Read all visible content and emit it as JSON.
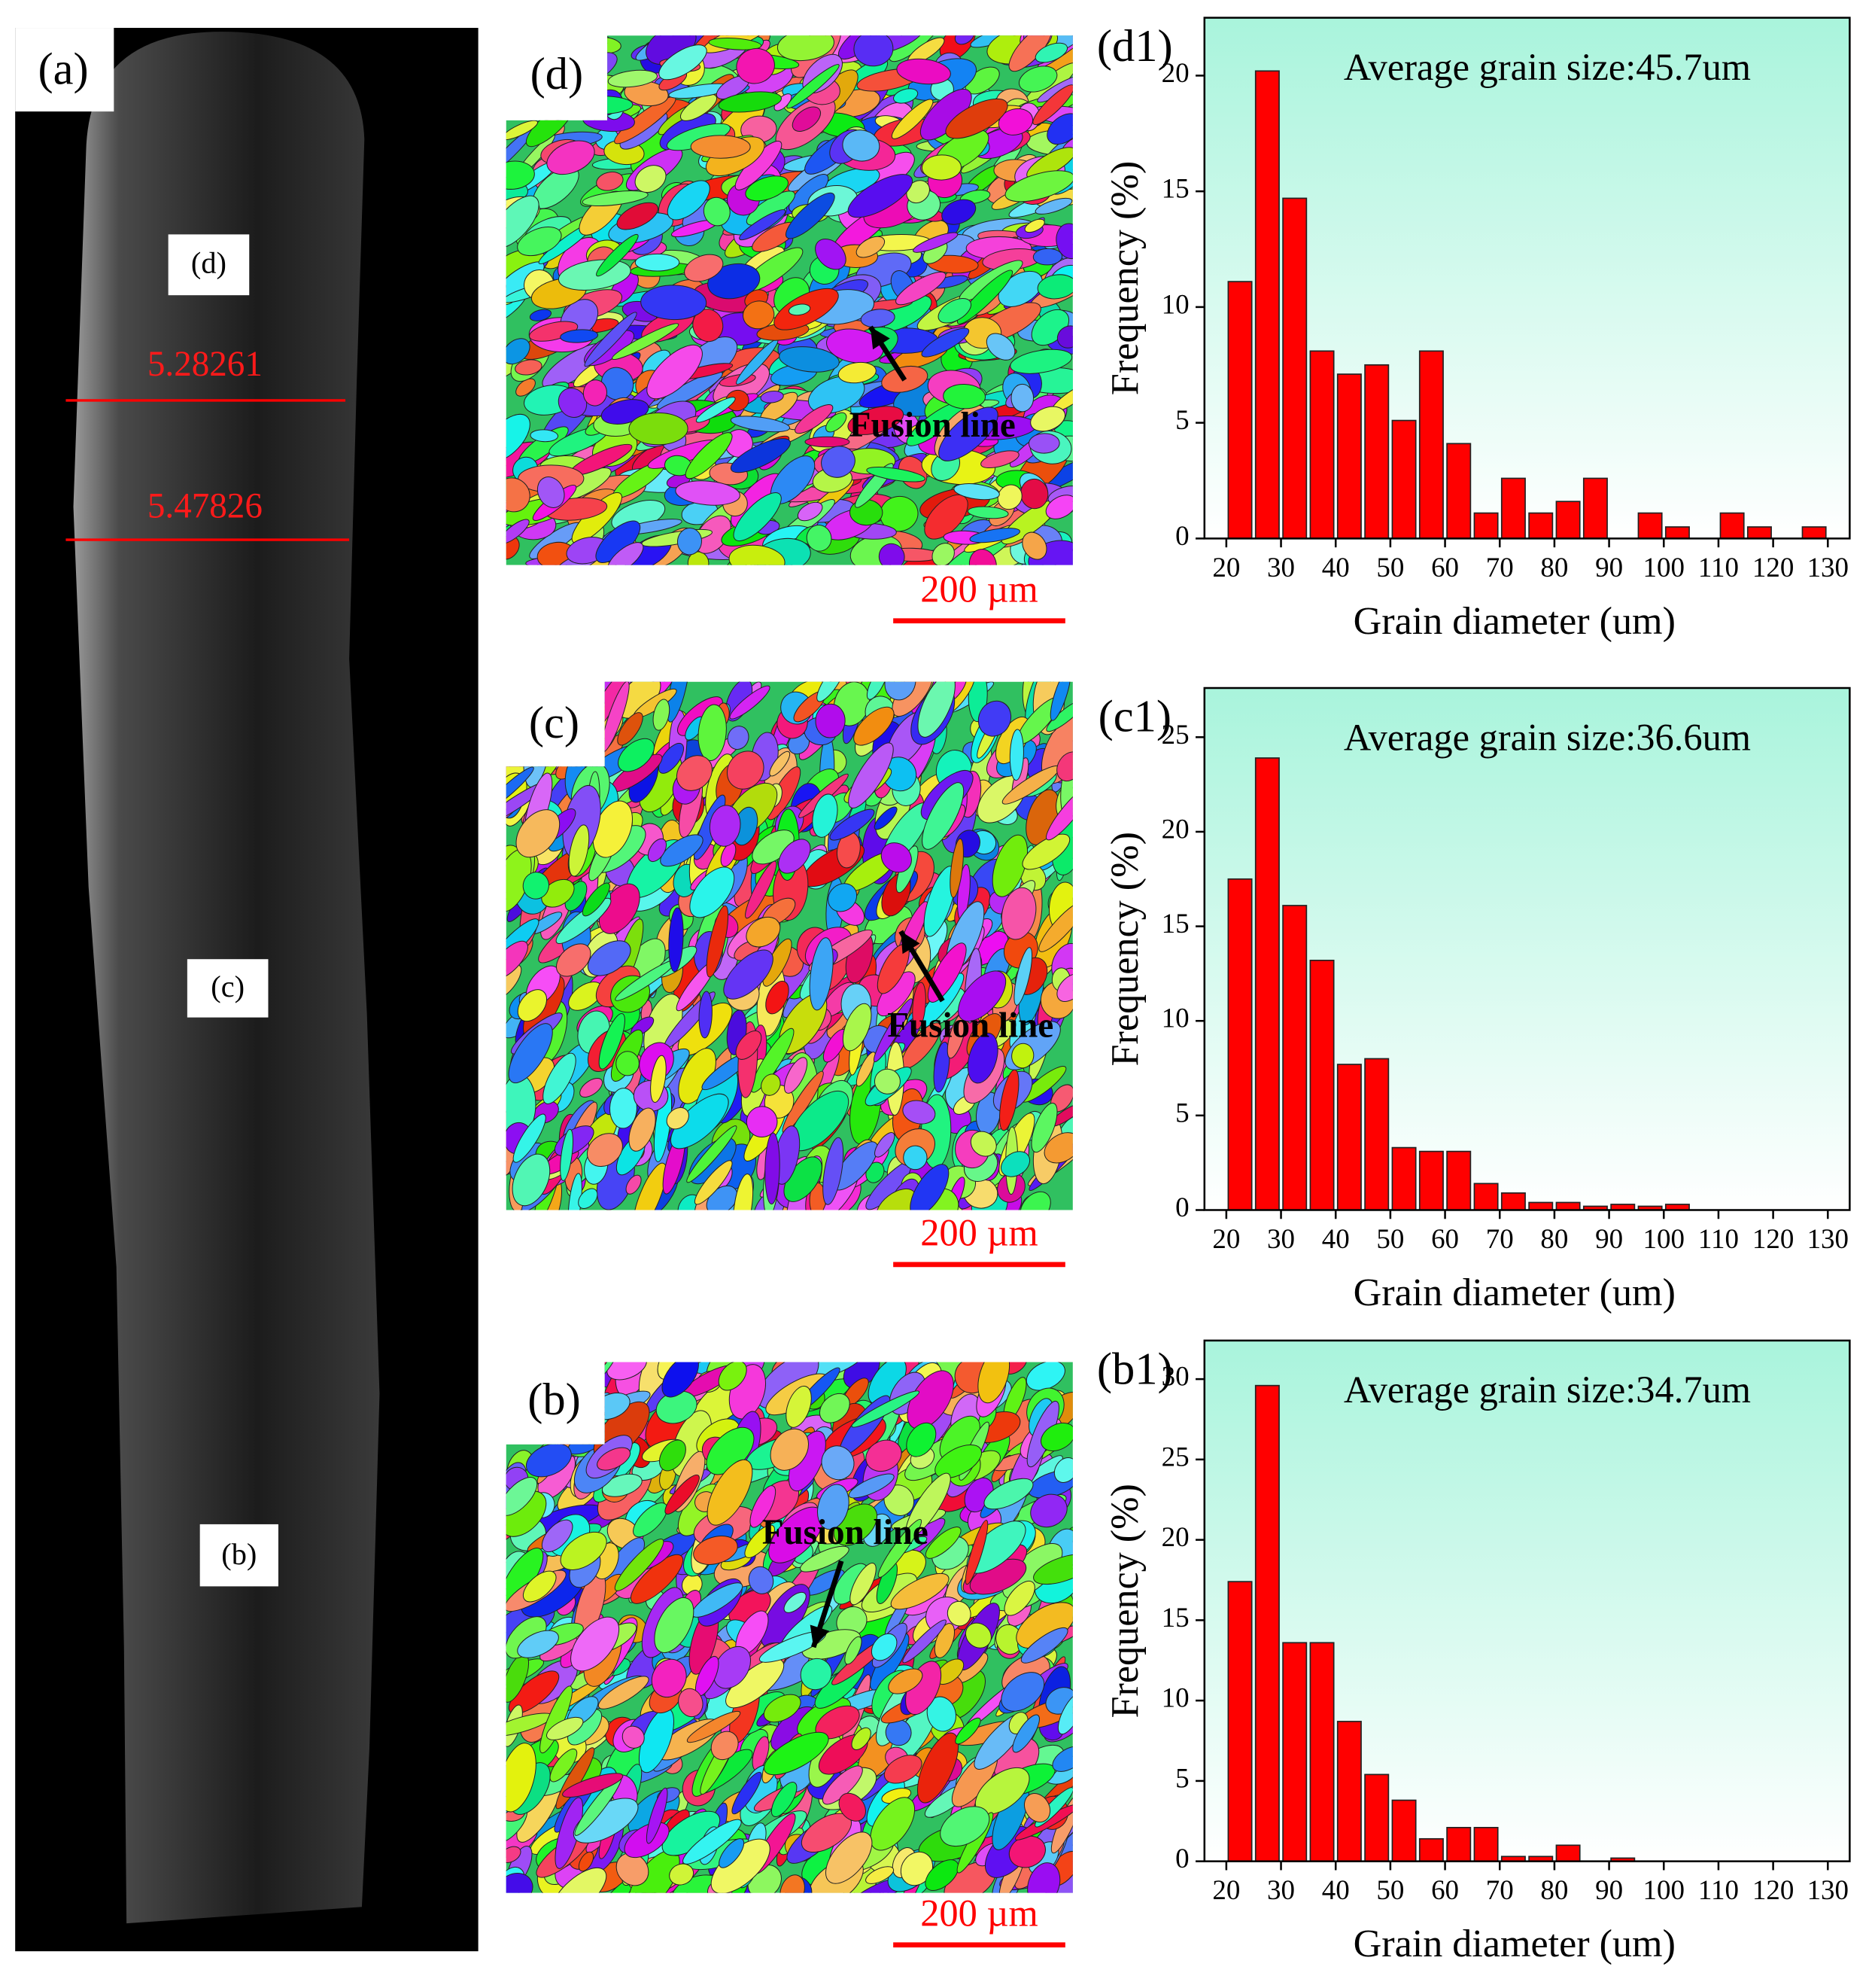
{
  "panel_a": {
    "label": "(a)",
    "region_labels": [
      "(d)",
      "(c)",
      "(b)"
    ],
    "measurements": [
      5.28261,
      5.47826
    ]
  },
  "maps": [
    {
      "label": "(d)",
      "annotation": "Fusion line",
      "scale_bar": "200 µm"
    },
    {
      "label": "(c)",
      "annotation": "Fusion line",
      "scale_bar": "200 µm"
    },
    {
      "label": "(b)",
      "annotation": "Fusion line",
      "scale_bar": "200 µm"
    }
  ],
  "chart_data": [
    {
      "type": "histogram",
      "label": "(d1)",
      "annotation": "Average grain size:45.7um",
      "xlabel": "Grain diameter (um)",
      "ylabel": "Frequency (%)",
      "color": "#ff0000",
      "bins": [
        20,
        25,
        30,
        35,
        40,
        45,
        50,
        55,
        60,
        65,
        70,
        75,
        80,
        85,
        90,
        95,
        100,
        105,
        110,
        115,
        120,
        125,
        130
      ],
      "values": [
        11.1,
        20.2,
        14.7,
        8.1,
        7.1,
        7.5,
        5.1,
        8.1,
        4.1,
        1.1,
        2.6,
        1.1,
        1.6,
        2.6,
        0,
        1.1,
        0.5,
        0,
        1.1,
        0.5,
        0,
        0.5
      ],
      "xlim": [
        16,
        134
      ],
      "ylim": [
        0,
        22.5
      ],
      "xticks": [
        20,
        30,
        40,
        50,
        60,
        70,
        80,
        90,
        100,
        110,
        120,
        130
      ],
      "yticks": [
        0,
        5,
        10,
        15,
        20
      ]
    },
    {
      "type": "histogram",
      "label": "(c1)",
      "annotation": "Average grain size:36.6um",
      "xlabel": "Grain diameter (um)",
      "ylabel": "Frequency (%)",
      "color": "#ff0000",
      "bins": [
        20,
        25,
        30,
        35,
        40,
        45,
        50,
        55,
        60,
        65,
        70,
        75,
        80,
        85,
        90,
        95,
        100,
        105,
        110,
        115,
        120,
        125,
        130
      ],
      "values": [
        17.5,
        23.9,
        16.1,
        13.2,
        7.7,
        8.0,
        3.3,
        3.1,
        3.1,
        1.4,
        0.9,
        0.4,
        0.4,
        0.2,
        0.3,
        0.2,
        0.3,
        0,
        0,
        0,
        0,
        0
      ],
      "xlim": [
        16,
        134
      ],
      "ylim": [
        0,
        27.6
      ],
      "xticks": [
        20,
        30,
        40,
        50,
        60,
        70,
        80,
        90,
        100,
        110,
        120,
        130
      ],
      "yticks": [
        0,
        5,
        10,
        15,
        20,
        25
      ]
    },
    {
      "type": "histogram",
      "label": "(b1)",
      "annotation": "Average grain size:34.7um",
      "xlabel": "Grain diameter (um)",
      "ylabel": "Frequency (%)",
      "color": "#ff0000",
      "bins": [
        20,
        25,
        30,
        35,
        40,
        45,
        50,
        55,
        60,
        65,
        70,
        75,
        80,
        85,
        90,
        95,
        100,
        105,
        110,
        115,
        120,
        125,
        130
      ],
      "values": [
        17.4,
        29.6,
        13.6,
        13.6,
        8.7,
        5.4,
        3.8,
        1.4,
        2.1,
        2.1,
        0.3,
        0.3,
        1.0,
        0,
        0.2,
        0,
        0,
        0,
        0,
        0,
        0,
        0
      ],
      "xlim": [
        16,
        134
      ],
      "ylim": [
        0,
        32.4
      ],
      "xticks": [
        20,
        30,
        40,
        50,
        60,
        70,
        80,
        90,
        100,
        110,
        120,
        130
      ],
      "yticks": [
        0,
        5,
        10,
        15,
        20,
        25,
        30
      ]
    }
  ]
}
